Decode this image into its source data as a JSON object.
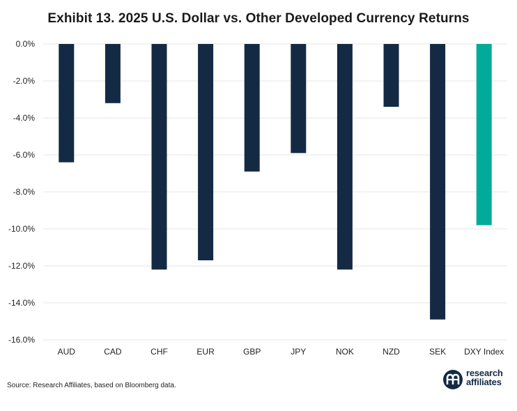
{
  "title": "Exhibit 13. 2025 U.S. Dollar vs. Other Developed Currency Returns",
  "source": "Source: Research Affiliates, based on Bloomberg data.",
  "logo": {
    "line1": "research",
    "line2": "affiliates"
  },
  "colors": {
    "bar": "#142a44",
    "highlight": "#00ab99",
    "grid": "#e6e6e6"
  },
  "chart_data": {
    "type": "bar",
    "title": "Exhibit 13. 2025 U.S. Dollar vs. Other Developed Currency Returns",
    "xlabel": "",
    "ylabel": "",
    "categories": [
      "AUD",
      "CAD",
      "CHF",
      "EUR",
      "GBP",
      "JPY",
      "NOK",
      "NZD",
      "SEK",
      "DXY Index"
    ],
    "values": [
      -6.4,
      -3.2,
      -12.2,
      -11.7,
      -6.9,
      -5.9,
      -12.2,
      -3.4,
      -14.9,
      -9.8
    ],
    "highlight_category": "DXY Index",
    "ylim": [
      -16,
      0
    ],
    "yticks": [
      0,
      -2,
      -4,
      -6,
      -8,
      -10,
      -12,
      -14,
      -16
    ],
    "ytick_format": "percent_1dp",
    "grid": true
  }
}
